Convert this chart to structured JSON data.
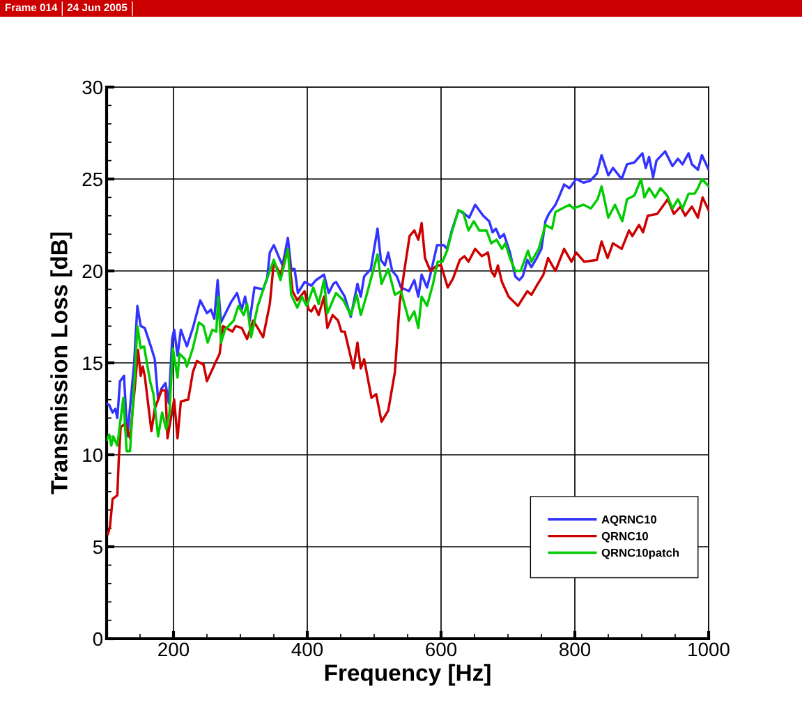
{
  "chart_data": {
    "type": "line",
    "xlabel": "Frequency [Hz]",
    "ylabel": "Transmission Loss [dB]",
    "annotations": [
      "Frame 014",
      "24 Jun 2005"
    ],
    "xlim": [
      100,
      1000
    ],
    "xticks": [
      {
        "value": 100,
        "label": null
      },
      200,
      400,
      600,
      800,
      1000
    ],
    "ylim": [
      0,
      30
    ],
    "yticks": [
      0,
      5,
      10,
      15,
      20,
      25,
      30
    ],
    "grid": true,
    "legend": "bottom right",
    "line_style": "solid",
    "marker": "none",
    "series": [
      {
        "name": "AQRNC10",
        "color": "#3333ff",
        "x": [
          100,
          104,
          109,
          113,
          116,
          120,
          126,
          131,
          141,
          146,
          151,
          157,
          167,
          172,
          177,
          182,
          188,
          193,
          198,
          201,
          206,
          211,
          220,
          229,
          240,
          250,
          256,
          261,
          266,
          271,
          286,
          295,
          302,
          307,
          314,
          321,
          334,
          340,
          344,
          350,
          357,
          363,
          371,
          376,
          381,
          386,
          396,
          406,
          413,
          425,
          432,
          439,
          443,
          456,
          465,
          475,
          480,
          485,
          495,
          505,
          510,
          516,
          521,
          527,
          534,
          540,
          552,
          560,
          566,
          571,
          579,
          584,
          594,
          604,
          609,
          616,
          626,
          635,
          642,
          651,
          663,
          672,
          677,
          682,
          688,
          694,
          703,
          711,
          717,
          722,
          729,
          735,
          743,
          750,
          756,
          761,
          771,
          776,
          784,
          792,
          802,
          813,
          823,
          833,
          840,
          850,
          857,
          870,
          878,
          889,
          901,
          906,
          911,
          917,
          922,
          935,
          946,
          954,
          961,
          970,
          975,
          984,
          990,
          1000
        ],
        "values": [
          12.8,
          12.7,
          12.3,
          12.5,
          12.0,
          14.0,
          14.3,
          11.0,
          14.9,
          18.1,
          17.0,
          16.9,
          15.8,
          15.2,
          13.0,
          13.6,
          13.9,
          12.8,
          16.3,
          16.8,
          15.4,
          16.8,
          15.9,
          16.9,
          18.4,
          17.7,
          17.9,
          17.4,
          19.5,
          17.2,
          18.3,
          18.8,
          17.9,
          18.6,
          17.3,
          19.1,
          19.0,
          19.6,
          21.0,
          21.4,
          20.8,
          20.3,
          21.8,
          20.1,
          20.1,
          18.8,
          19.4,
          19.2,
          19.5,
          19.8,
          18.8,
          19.3,
          19.4,
          18.6,
          17.5,
          19.3,
          18.6,
          19.7,
          20.1,
          22.3,
          20.6,
          20.3,
          21.0,
          20.0,
          19.7,
          19.1,
          18.9,
          19.5,
          18.6,
          19.8,
          19.1,
          19.8,
          21.4,
          21.4,
          21.2,
          22.2,
          23.3,
          23.1,
          22.9,
          23.6,
          23.0,
          22.7,
          22.1,
          22.3,
          21.8,
          22.0,
          21.0,
          19.7,
          19.5,
          19.7,
          20.6,
          20.2,
          20.7,
          21.2,
          22.7,
          23.1,
          23.6,
          24.0,
          24.7,
          24.5,
          25.0,
          24.8,
          24.9,
          25.3,
          26.3,
          25.2,
          25.6,
          25.0,
          25.8,
          25.9,
          26.4,
          25.6,
          26.2,
          25.1,
          26.0,
          26.5,
          25.7,
          26.1,
          25.8,
          26.4,
          25.8,
          25.5,
          26.3,
          25.5
        ]
      },
      {
        "name": "QRNC10",
        "color": "#cc0000",
        "x": [
          102,
          105,
          109,
          116,
          118,
          121,
          128,
          135,
          142,
          147,
          151,
          154,
          157,
          167,
          172,
          182,
          188,
          191,
          201,
          206,
          211,
          222,
          229,
          235,
          245,
          250,
          260,
          269,
          274,
          288,
          293,
          302,
          310,
          319,
          326,
          334,
          344,
          350,
          360,
          371,
          378,
          385,
          396,
          402,
          406,
          411,
          417,
          425,
          430,
          438,
          446,
          451,
          456,
          469,
          475,
          480,
          485,
          496,
          503,
          511,
          521,
          531,
          538,
          545,
          553,
          560,
          566,
          571,
          576,
          584,
          594,
          600,
          610,
          618,
          628,
          635,
          641,
          651,
          661,
          670,
          675,
          680,
          685,
          691,
          701,
          715,
          729,
          735,
          743,
          753,
          760,
          771,
          784,
          795,
          802,
          814,
          833,
          840,
          849,
          857,
          870,
          881,
          886,
          896,
          902,
          909,
          923,
          939,
          948,
          958,
          965,
          975,
          984,
          991,
          1000
        ],
        "values": [
          5.7,
          6.1,
          7.6,
          7.8,
          9.6,
          11.5,
          11.7,
          10.9,
          13.6,
          15.7,
          14.3,
          14.8,
          14.3,
          11.3,
          12.5,
          13.5,
          13.5,
          10.9,
          13.0,
          10.9,
          12.9,
          13.0,
          14.5,
          15.1,
          14.9,
          14.0,
          14.8,
          15.5,
          17.0,
          16.7,
          17.0,
          16.9,
          16.3,
          17.3,
          16.9,
          16.4,
          18.2,
          20.5,
          19.8,
          21.2,
          18.9,
          18.4,
          18.9,
          17.9,
          17.8,
          18.1,
          17.6,
          18.6,
          16.9,
          17.6,
          17.3,
          16.7,
          16.7,
          14.7,
          16.1,
          14.7,
          15.2,
          13.1,
          13.3,
          11.8,
          12.4,
          14.5,
          18.2,
          20.0,
          21.9,
          22.2,
          21.7,
          22.6,
          20.7,
          20.0,
          20.3,
          20.3,
          19.1,
          19.6,
          20.6,
          20.8,
          20.5,
          21.2,
          20.8,
          21.0,
          20.0,
          19.7,
          20.3,
          19.4,
          18.6,
          18.1,
          18.9,
          18.7,
          19.2,
          19.8,
          20.7,
          20.0,
          21.2,
          20.5,
          21.0,
          20.5,
          20.6,
          21.6,
          20.7,
          21.5,
          21.2,
          22.2,
          21.9,
          22.5,
          22.1,
          23.0,
          23.1,
          23.9,
          23.1,
          23.5,
          23.0,
          23.5,
          22.9,
          24.0,
          23.3
        ]
      },
      {
        "name": "QRNC10patch",
        "color": "#00cc00",
        "x": [
          100,
          104,
          107,
          110,
          116,
          125,
          130,
          135,
          142,
          146,
          151,
          156,
          165,
          170,
          177,
          183,
          189,
          194,
          199,
          206,
          209,
          217,
          220,
          229,
          238,
          245,
          251,
          258,
          264,
          267,
          271,
          277,
          290,
          297,
          305,
          310,
          316,
          326,
          340,
          350,
          360,
          371,
          376,
          385,
          392,
          399,
          409,
          417,
          425,
          430,
          443,
          454,
          465,
          474,
          480,
          488,
          505,
          511,
          521,
          531,
          540,
          552,
          560,
          566,
          571,
          579,
          588,
          595,
          602,
          609,
          616,
          626,
          633,
          641,
          649,
          657,
          668,
          675,
          683,
          691,
          696,
          703,
          711,
          719,
          730,
          735,
          746,
          756,
          766,
          771,
          781,
          792,
          798,
          813,
          824,
          834,
          840,
          850,
          860,
          871,
          878,
          889,
          899,
          904,
          911,
          920,
          928,
          938,
          946,
          954,
          961,
          970,
          979,
          984,
          990,
          1000
        ],
        "values": [
          10.8,
          11.1,
          10.5,
          11.0,
          10.5,
          13.1,
          10.2,
          10.2,
          14.3,
          17.0,
          15.8,
          15.9,
          14.0,
          13.3,
          11.0,
          12.3,
          11.4,
          12.3,
          15.8,
          14.2,
          15.5,
          15.2,
          14.8,
          15.8,
          17.2,
          17.0,
          16.1,
          16.8,
          16.7,
          18.6,
          16.1,
          16.8,
          17.3,
          18.1,
          17.6,
          18.2,
          16.4,
          18.1,
          19.6,
          20.6,
          19.5,
          21.2,
          18.7,
          18.0,
          18.6,
          18.1,
          19.1,
          18.2,
          19.5,
          17.7,
          18.8,
          18.4,
          17.6,
          18.7,
          17.6,
          18.6,
          20.9,
          19.3,
          20.1,
          18.7,
          18.9,
          17.3,
          17.8,
          16.9,
          18.6,
          18.1,
          19.3,
          20.5,
          20.5,
          21.1,
          22.1,
          23.3,
          23.2,
          22.2,
          22.7,
          22.2,
          22.2,
          21.5,
          21.7,
          21.2,
          21.5,
          20.7,
          20.0,
          20.0,
          21.1,
          20.5,
          21.2,
          22.5,
          22.3,
          23.2,
          23.4,
          23.6,
          23.4,
          23.6,
          23.4,
          23.9,
          24.6,
          22.9,
          23.6,
          22.7,
          23.9,
          24.1,
          25.0,
          24.0,
          24.5,
          24.0,
          24.5,
          24.1,
          23.4,
          23.9,
          23.4,
          24.2,
          24.2,
          24.5,
          25.0,
          24.6
        ]
      }
    ]
  }
}
